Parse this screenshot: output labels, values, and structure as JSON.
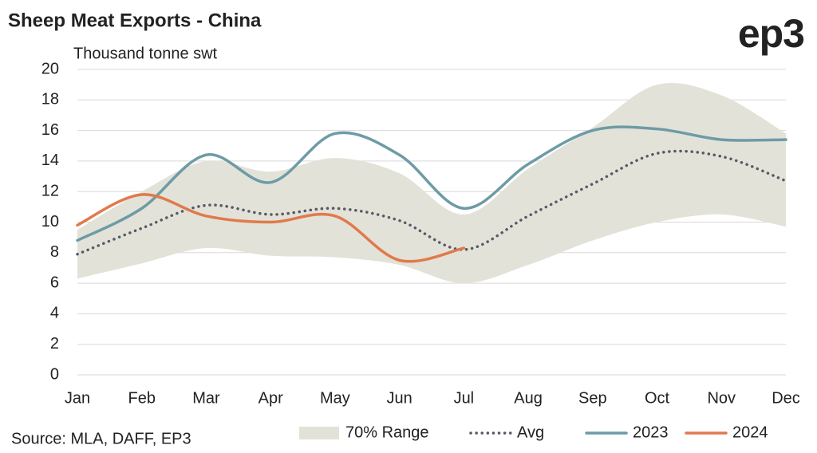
{
  "chart_data": {
    "type": "line",
    "title": "Sheep Meat Exports - China",
    "logo": "ep3",
    "y_label": "Thousand tonne swt",
    "source": "Source: MLA, DAFF, EP3",
    "categories": [
      "Jan",
      "Feb",
      "Mar",
      "Apr",
      "May",
      "Jun",
      "Jul",
      "Aug",
      "Sep",
      "Oct",
      "Nov",
      "Dec"
    ],
    "ylim": [
      0,
      20
    ],
    "yticks": [
      0,
      2,
      4,
      6,
      8,
      10,
      12,
      14,
      16,
      18,
      20
    ],
    "grid": true,
    "legend": "bottom",
    "series": [
      {
        "name": "70% Range",
        "color": "#e3e2d8",
        "kind": "range",
        "values": [
          9.5,
          12.0,
          14.0,
          13.3,
          14.2,
          13.2,
          10.5,
          13.5,
          16.2,
          19.0,
          18.3,
          15.8
        ],
        "lower": [
          6.3,
          7.3,
          8.3,
          7.8,
          7.7,
          7.2,
          6.0,
          7.2,
          8.8,
          10.0,
          10.5,
          9.7
        ]
      },
      {
        "name": "Avg",
        "color": "#555a66",
        "dash": "dotted",
        "values": [
          7.9,
          9.6,
          11.1,
          10.5,
          10.9,
          10.1,
          8.2,
          10.4,
          12.5,
          14.5,
          14.3,
          12.7
        ]
      },
      {
        "name": "2023",
        "color": "#6d9ba6",
        "values": [
          8.8,
          10.9,
          14.4,
          12.6,
          15.8,
          14.4,
          10.9,
          13.8,
          16.0,
          16.1,
          15.4,
          15.4
        ]
      },
      {
        "name": "2024",
        "color": "#e07a4c",
        "values": [
          9.8,
          11.8,
          10.4,
          10.0,
          10.4,
          7.5,
          8.3,
          null,
          null,
          null,
          null,
          null
        ]
      }
    ]
  }
}
